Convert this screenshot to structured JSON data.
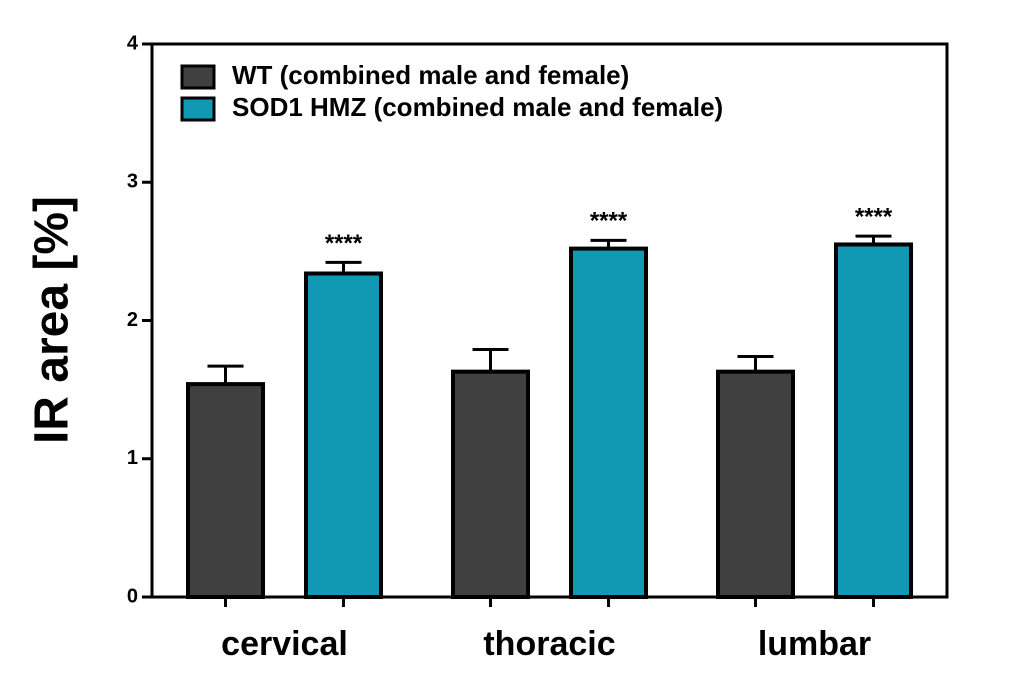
{
  "chart_data": {
    "type": "bar",
    "y_label": "IR area [%]",
    "categories": [
      "cervical",
      "thoracic",
      "lumbar"
    ],
    "series": [
      {
        "name": "WT (combined male and female)",
        "color": "#404040",
        "values": [
          1.54,
          1.63,
          1.63
        ],
        "errors": [
          0.13,
          0.16,
          0.11
        ]
      },
      {
        "name": "SOD1 HMZ (combined male and female)",
        "color": "#1199b4",
        "values": [
          2.34,
          2.52,
          2.55
        ],
        "errors": [
          0.08,
          0.06,
          0.06
        ],
        "annotations": [
          "****",
          "****",
          "****"
        ]
      }
    ],
    "ylim": [
      0,
      4
    ],
    "yticks": [
      0,
      1,
      2,
      3,
      4
    ],
    "legend": "upper left"
  }
}
